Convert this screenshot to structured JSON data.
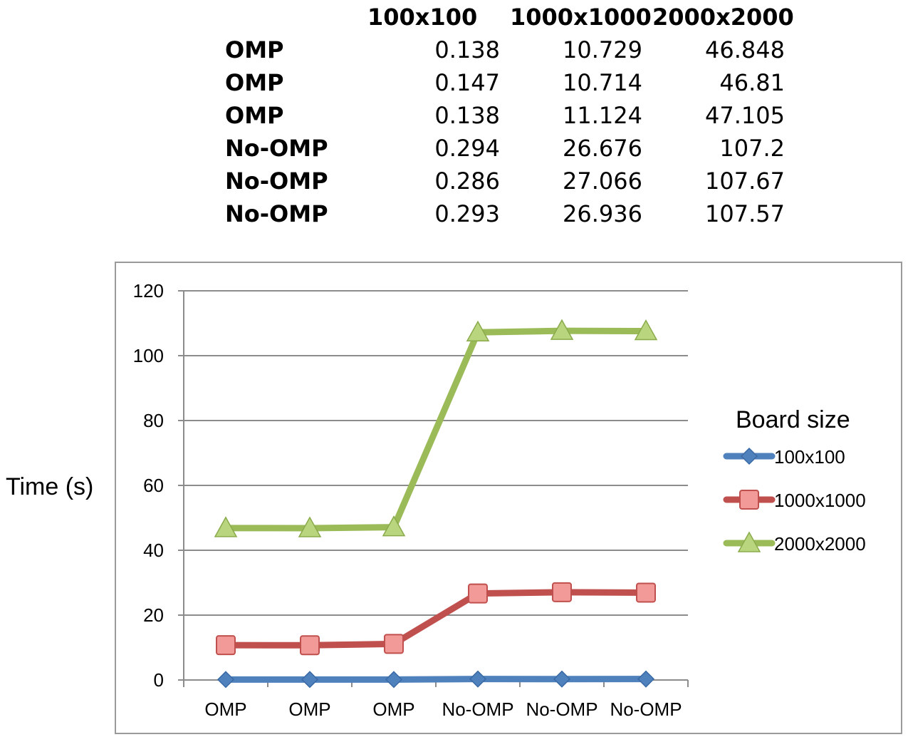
{
  "table": {
    "columns": [
      "100x100",
      "1000x1000",
      "2000x2000"
    ],
    "rows": [
      {
        "label": "OMP",
        "values": [
          "0.138",
          "10.729",
          "46.848"
        ]
      },
      {
        "label": "OMP",
        "values": [
          "0.147",
          "10.714",
          "46.81"
        ]
      },
      {
        "label": "OMP",
        "values": [
          "0.138",
          "11.124",
          "47.105"
        ]
      },
      {
        "label": "No-OMP",
        "values": [
          "0.294",
          "26.676",
          "107.2"
        ]
      },
      {
        "label": "No-OMP",
        "values": [
          "0.286",
          "27.066",
          "107.67"
        ]
      },
      {
        "label": "No-OMP",
        "values": [
          "0.293",
          "26.936",
          "107.57"
        ]
      }
    ]
  },
  "chart_data": {
    "type": "line",
    "categories": [
      "OMP",
      "OMP",
      "OMP",
      "No-OMP",
      "No-OMP",
      "No-OMP"
    ],
    "series": [
      {
        "name": "100x100",
        "values": [
          0.138,
          0.147,
          0.138,
          0.294,
          0.286,
          0.293
        ],
        "color": "#4f81bd",
        "marker": "diamond"
      },
      {
        "name": "1000x1000",
        "values": [
          10.729,
          10.714,
          11.124,
          26.676,
          27.066,
          26.936
        ],
        "color": "#c0504d",
        "marker": "square"
      },
      {
        "name": "2000x2000",
        "values": [
          46.848,
          46.81,
          47.105,
          107.2,
          107.67,
          107.57
        ],
        "color": "#9bbb59",
        "marker": "triangle"
      }
    ],
    "ylabel": "Time (s)",
    "ylim": [
      0,
      120
    ],
    "yticks": [
      0,
      20,
      40,
      60,
      80,
      100,
      120
    ],
    "grid": true,
    "legend_title": "Board size",
    "legend_position": "right"
  }
}
